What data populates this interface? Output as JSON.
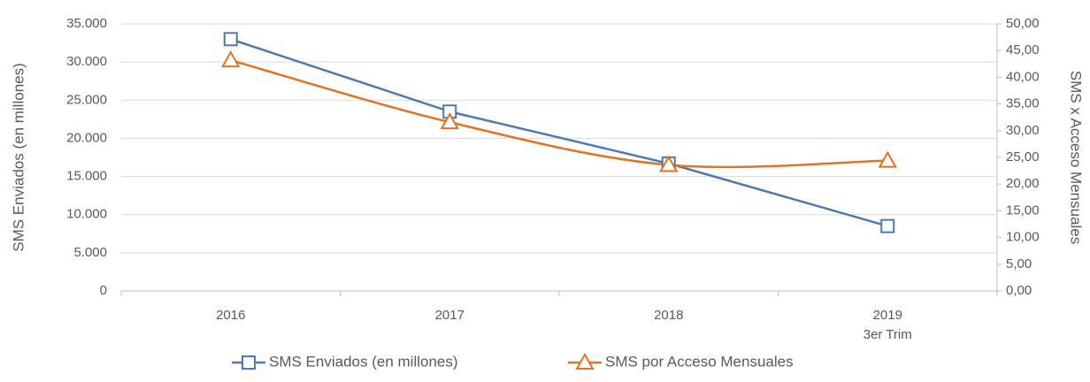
{
  "chart_data": {
    "type": "line",
    "categories": [
      "2016",
      "2017",
      "2018",
      "2019\n3er Trim"
    ],
    "series": [
      {
        "name": "SMS Enviados (en millones)",
        "color": "#4a7ab5",
        "marker": "square",
        "values": [
          33000,
          23500,
          16700,
          8500
        ]
      },
      {
        "name": "SMS por Acceso Mensuales",
        "color": "#e37222",
        "marker": "triangle",
        "axis": "y2",
        "smooth": true,
        "values": [
          43.2,
          31.6,
          23.6,
          24.4
        ]
      }
    ],
    "ylabel": "SMS Enviados (en millones)",
    "y2label": "SMS x Acceso Mensuales",
    "ylim": [
      0,
      35000
    ],
    "yticks": [
      {
        "value": 0,
        "label": "0"
      },
      {
        "value": 5000,
        "label": "5.000"
      },
      {
        "value": 10000,
        "label": "10.000"
      },
      {
        "value": 15000,
        "label": "15.000"
      },
      {
        "value": 20000,
        "label": "20.000"
      },
      {
        "value": 25000,
        "label": "25.000"
      },
      {
        "value": 30000,
        "label": "30.000"
      },
      {
        "value": 35000,
        "label": "35.000"
      }
    ],
    "y2lim": [
      0,
      50
    ],
    "y2ticks": [
      {
        "value": 0,
        "label": "0,00"
      },
      {
        "value": 5,
        "label": "5,00"
      },
      {
        "value": 10,
        "label": "10,00"
      },
      {
        "value": 15,
        "label": "15,00"
      },
      {
        "value": 20,
        "label": "20,00"
      },
      {
        "value": 25,
        "label": "25,00"
      },
      {
        "value": 30,
        "label": "30,00"
      },
      {
        "value": 35,
        "label": "35,00"
      },
      {
        "value": 40,
        "label": "40,00"
      },
      {
        "value": 45,
        "label": "45,00"
      },
      {
        "value": 50,
        "label": "50,00"
      }
    ],
    "grid": true,
    "legend": "bottom"
  }
}
